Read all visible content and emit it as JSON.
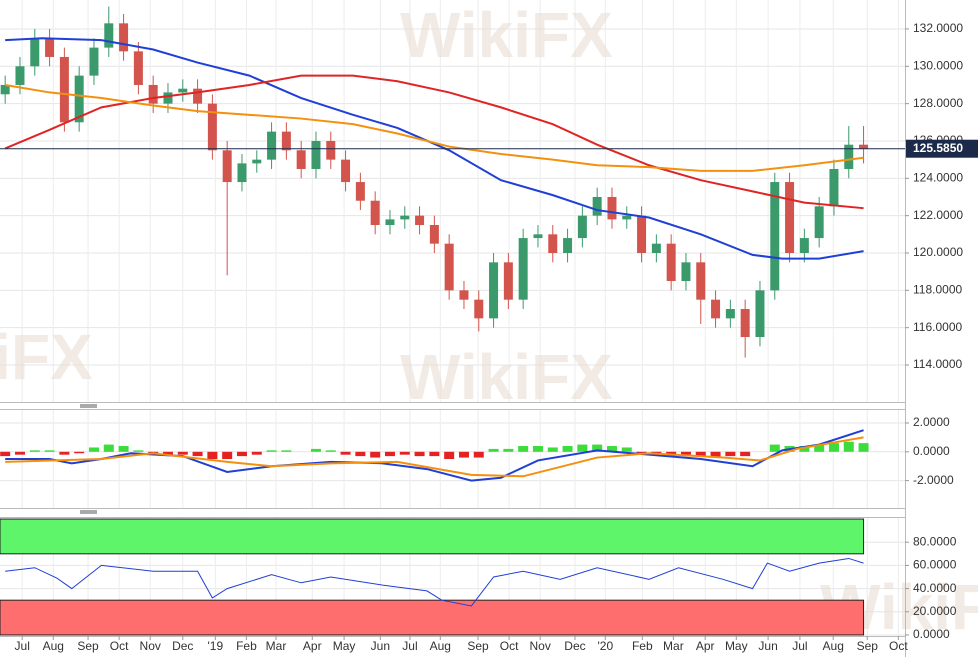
{
  "chart_data": [
    {
      "type": "candlestick",
      "watermark": "WikiFX",
      "xlim": [
        -0.7,
        121.6
      ],
      "ylim": [
        112.02,
        133.55
      ],
      "yticks": [
        {
          "value": 114,
          "label": "114.0000"
        },
        {
          "value": 116,
          "label": "116.0000"
        },
        {
          "value": 118,
          "label": "118.0000"
        },
        {
          "value": 120,
          "label": "120.0000"
        },
        {
          "value": 122,
          "label": "122.0000"
        },
        {
          "value": 124,
          "label": "124.0000"
        },
        {
          "value": 126,
          "label": "126.0000"
        },
        {
          "value": 128,
          "label": "128.0000"
        },
        {
          "value": 130,
          "label": "130.0000"
        },
        {
          "value": 132,
          "label": "132.0000"
        }
      ],
      "grid": true,
      "up_color": "#3a9a6c",
      "down_color": "#d2544c",
      "x": [
        0,
        2,
        4,
        6,
        8,
        10,
        12,
        14,
        16,
        18,
        20,
        22,
        24,
        26,
        28,
        30,
        32,
        34,
        36,
        38,
        40,
        42,
        44,
        46,
        48,
        50,
        52,
        54,
        56,
        58,
        60,
        62,
        64,
        66,
        68,
        70,
        72,
        74,
        76,
        78,
        80,
        82,
        84,
        86,
        88,
        90,
        92,
        94,
        96,
        98,
        100,
        102,
        104,
        106,
        108,
        110,
        112,
        114,
        116
      ],
      "open": [
        128.5,
        129.0,
        130.0,
        131.5,
        130.5,
        127.0,
        129.5,
        131.0,
        132.3,
        130.8,
        129.0,
        128.0,
        128.6,
        128.8,
        128.0,
        125.5,
        123.8,
        124.8,
        125.0,
        126.5,
        125.5,
        124.5,
        126.0,
        125.0,
        123.8,
        122.8,
        121.5,
        121.8,
        122.0,
        121.5,
        120.5,
        118.0,
        117.5,
        116.5,
        119.5,
        117.5,
        120.8,
        121.0,
        120.0,
        120.8,
        122.0,
        123.0,
        121.8,
        122.0,
        120.0,
        120.5,
        118.5,
        119.5,
        117.5,
        116.5,
        117.0,
        115.5,
        118.0,
        123.8,
        120.0,
        120.8,
        122.5,
        124.5,
        125.8
      ],
      "high": [
        129.5,
        130.5,
        132.0,
        132.0,
        131.0,
        130.0,
        131.5,
        133.2,
        132.8,
        131.3,
        129.5,
        129.1,
        129.3,
        129.3,
        128.5,
        126.0,
        125.3,
        125.5,
        127.0,
        127.0,
        126.0,
        126.5,
        126.5,
        125.5,
        124.3,
        123.3,
        122.3,
        122.5,
        122.5,
        122.0,
        121.0,
        118.5,
        118.0,
        120.0,
        120.0,
        121.3,
        121.5,
        121.5,
        121.3,
        122.5,
        123.5,
        123.5,
        122.5,
        122.5,
        121.0,
        121.0,
        120.0,
        120.0,
        118.0,
        117.5,
        117.5,
        118.5,
        124.3,
        124.3,
        121.3,
        123.0,
        125.0,
        126.8,
        126.8
      ],
      "low": [
        128.0,
        128.5,
        129.5,
        130.0,
        126.5,
        126.5,
        129.0,
        130.5,
        130.3,
        128.5,
        127.5,
        127.5,
        128.1,
        127.5,
        125.0,
        118.8,
        123.3,
        124.3,
        124.5,
        125.0,
        124.0,
        124.0,
        124.5,
        123.3,
        122.3,
        121.0,
        121.0,
        121.3,
        121.0,
        120.0,
        117.5,
        117.0,
        115.8,
        116.0,
        117.0,
        117.0,
        120.3,
        119.5,
        119.5,
        120.3,
        121.5,
        121.3,
        121.3,
        119.5,
        119.5,
        118.0,
        118.0,
        116.2,
        116.0,
        116.0,
        114.4,
        115.0,
        117.5,
        119.5,
        119.5,
        120.3,
        122.0,
        124.0,
        124.8
      ],
      "close": [
        129.0,
        130.0,
        131.5,
        130.5,
        127.0,
        129.5,
        131.0,
        132.3,
        130.8,
        129.0,
        128.0,
        128.6,
        128.8,
        128.0,
        125.5,
        123.8,
        124.8,
        125.0,
        126.5,
        125.5,
        124.5,
        126.0,
        125.0,
        123.8,
        122.8,
        121.5,
        121.8,
        122.0,
        121.5,
        120.5,
        118.0,
        117.5,
        116.5,
        119.5,
        117.5,
        120.8,
        121.0,
        120.0,
        120.8,
        122.0,
        123.0,
        121.8,
        122.0,
        120.0,
        120.5,
        118.5,
        119.5,
        117.5,
        116.5,
        117.0,
        115.5,
        118.0,
        123.8,
        120.0,
        120.8,
        122.5,
        124.5,
        125.8,
        125.585
      ],
      "last_price": {
        "value": 125.585,
        "label": "125.5850"
      },
      "last_price_color": "#1c2a4a",
      "series": [
        {
          "color": "#1f3fd6",
          "x": [
            0,
            5,
            13,
            20,
            26,
            33,
            40,
            47,
            53,
            60,
            67,
            74,
            80,
            87,
            94,
            101,
            105,
            110,
            116
          ],
          "values": [
            131.4,
            131.5,
            131.4,
            130.9,
            130.2,
            129.5,
            128.3,
            127.4,
            126.7,
            125.5,
            123.9,
            123.1,
            122.3,
            121.9,
            121.0,
            119.9,
            119.7,
            119.7,
            120.1
          ]
        },
        {
          "color": "#e02424",
          "x": [
            0,
            6,
            13,
            20,
            26,
            33,
            40,
            47,
            53,
            60,
            67,
            74,
            80,
            87,
            94,
            101,
            108,
            116
          ],
          "values": [
            125.6,
            126.6,
            127.8,
            128.3,
            128.6,
            129.0,
            129.5,
            129.5,
            129.2,
            128.6,
            127.8,
            126.9,
            125.8,
            124.7,
            123.9,
            123.3,
            122.7,
            122.4
          ]
        },
        {
          "color": "#f5900f",
          "x": [
            0,
            6,
            13,
            20,
            26,
            33,
            40,
            47,
            53,
            60,
            67,
            74,
            80,
            87,
            94,
            101,
            108,
            116
          ],
          "values": [
            129.0,
            128.6,
            128.3,
            127.9,
            127.6,
            127.4,
            127.2,
            126.9,
            126.4,
            125.7,
            125.3,
            125.0,
            124.7,
            124.6,
            124.4,
            124.4,
            124.7,
            125.1
          ]
        }
      ]
    },
    {
      "type": "macd",
      "xlim": [
        -0.7,
        121.6
      ],
      "ylim": [
        -3.9,
        2.9
      ],
      "yticks": [
        {
          "value": -2,
          "label": "-2.0000"
        },
        {
          "value": 0,
          "label": "0.0000"
        },
        {
          "value": 2,
          "label": "2.0000"
        }
      ],
      "up_color": "#3bdc3b",
      "down_color": "#e42222",
      "x": [
        0,
        2,
        4,
        6,
        8,
        10,
        12,
        14,
        16,
        18,
        20,
        22,
        24,
        26,
        28,
        30,
        32,
        34,
        36,
        38,
        40,
        42,
        44,
        46,
        48,
        50,
        52,
        54,
        56,
        58,
        60,
        62,
        64,
        66,
        68,
        70,
        72,
        74,
        76,
        78,
        80,
        82,
        84,
        86,
        88,
        90,
        92,
        94,
        96,
        98,
        100,
        102,
        104,
        106,
        108,
        110,
        112,
        114,
        116
      ],
      "values": [
        -0.3,
        -0.2,
        0.1,
        0.1,
        -0.2,
        -0.1,
        0.3,
        0.5,
        0.4,
        0.1,
        -0.2,
        -0.2,
        -0.2,
        -0.3,
        -0.5,
        -0.5,
        -0.3,
        -0.2,
        0.1,
        0.1,
        0.0,
        0.2,
        0.1,
        -0.2,
        -0.3,
        -0.4,
        -0.3,
        -0.2,
        -0.3,
        -0.3,
        -0.5,
        -0.4,
        -0.4,
        0.2,
        0.2,
        0.4,
        0.4,
        0.3,
        0.4,
        0.5,
        0.5,
        0.4,
        0.3,
        -0.1,
        -0.1,
        -0.3,
        -0.2,
        -0.3,
        -0.4,
        -0.3,
        -0.3,
        0.0,
        0.5,
        0.4,
        0.4,
        0.5,
        0.6,
        0.7,
        0.6
      ],
      "series": [
        {
          "color": "#1f3fd6",
          "x": [
            0,
            6,
            9,
            13,
            17,
            24,
            30,
            36,
            44,
            51,
            57,
            63,
            67,
            72,
            80,
            87,
            94,
            101,
            105,
            110,
            116
          ],
          "values": [
            -0.5,
            -0.5,
            -0.8,
            -0.5,
            -0.1,
            -0.3,
            -1.4,
            -1.0,
            -0.7,
            -0.8,
            -1.2,
            -2.0,
            -1.8,
            -0.6,
            0.1,
            -0.2,
            -0.5,
            -1.0,
            0.1,
            0.5,
            1.5
          ]
        },
        {
          "color": "#f5900f",
          "x": [
            0,
            13,
            20,
            30,
            36,
            44,
            53,
            63,
            70,
            80,
            87,
            97,
            102,
            107,
            116
          ],
          "values": [
            -0.7,
            -0.5,
            -0.1,
            -0.7,
            -1.0,
            -0.8,
            -0.7,
            -1.6,
            -1.7,
            -0.4,
            -0.1,
            -0.4,
            -0.6,
            0.2,
            1.0
          ]
        }
      ]
    },
    {
      "type": "rsi",
      "xlim": [
        -0.7,
        121.6
      ],
      "ylim": [
        -0.9,
        100.9
      ],
      "yticks": [
        {
          "value": 0,
          "label": "0.0000"
        },
        {
          "value": 20,
          "label": "20.0000"
        },
        {
          "value": 40,
          "label": "40.0000"
        },
        {
          "value": 60,
          "label": "60.0000"
        },
        {
          "value": 80,
          "label": "80.0000"
        }
      ],
      "bands": [
        {
          "range": [
            70,
            100
          ],
          "color": "#5ff56a"
        },
        {
          "range": [
            0,
            30
          ],
          "color": "#ff6e6e"
        }
      ],
      "series": [
        {
          "color": "#1f3fd6",
          "x": [
            0,
            4,
            7,
            9,
            13,
            20,
            26,
            28,
            30,
            36,
            40,
            44,
            51,
            57,
            59,
            63,
            66,
            70,
            75,
            80,
            87,
            91,
            97,
            101,
            103,
            106,
            110,
            114,
            116
          ],
          "values": [
            55,
            58,
            49,
            40,
            60,
            55,
            55,
            32,
            40,
            52,
            45,
            50,
            43,
            38,
            30,
            25,
            50,
            55,
            48,
            58,
            48,
            58,
            48,
            40,
            62,
            55,
            62,
            66,
            62
          ]
        }
      ],
      "xticks": [
        {
          "value": 2.3,
          "label": "Jul"
        },
        {
          "value": 6.5,
          "label": "Aug"
        },
        {
          "value": 11.2,
          "label": "Sep"
        },
        {
          "value": 15.4,
          "label": "Oct"
        },
        {
          "value": 19.6,
          "label": "Nov"
        },
        {
          "value": 24.0,
          "label": "Dec"
        },
        {
          "value": 28.4,
          "label": "'19"
        },
        {
          "value": 32.6,
          "label": "Feb"
        },
        {
          "value": 36.6,
          "label": "Mar"
        },
        {
          "value": 41.5,
          "label": "Apr"
        },
        {
          "value": 45.8,
          "label": "May"
        },
        {
          "value": 50.7,
          "label": "Jun"
        },
        {
          "value": 54.7,
          "label": "Jul"
        },
        {
          "value": 58.8,
          "label": "Aug"
        },
        {
          "value": 63.9,
          "label": "Sep"
        },
        {
          "value": 68.1,
          "label": "Oct"
        },
        {
          "value": 72.3,
          "label": "Nov"
        },
        {
          "value": 77.0,
          "label": "Dec"
        },
        {
          "value": 81.1,
          "label": "'20"
        },
        {
          "value": 86.1,
          "label": "Feb"
        },
        {
          "value": 90.3,
          "label": "Mar"
        },
        {
          "value": 94.6,
          "label": "Apr"
        },
        {
          "value": 98.8,
          "label": "May"
        },
        {
          "value": 103.1,
          "label": "Jun"
        },
        {
          "value": 107.4,
          "label": "Jul"
        },
        {
          "value": 111.9,
          "label": "Aug"
        },
        {
          "value": 116.5,
          "label": "Sep"
        },
        {
          "value": 120.7,
          "label": "Oct"
        }
      ]
    }
  ]
}
